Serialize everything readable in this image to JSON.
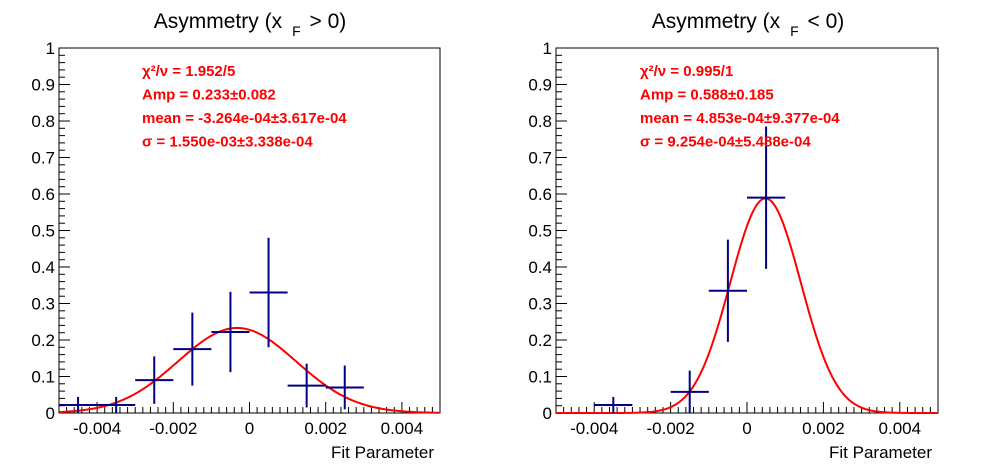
{
  "chart_data": [
    {
      "type": "scatter",
      "title_main": "Asymmetry (x",
      "title_sub": "F",
      "title_rest": " > 0)",
      "xlabel": "Fit Parameter",
      "ylabel": "",
      "xlim": [
        -0.005,
        0.005
      ],
      "ylim": [
        0,
        1
      ],
      "xticks": [
        -0.004,
        -0.002,
        0,
        0.002,
        0.004
      ],
      "xtick_labels": [
        "-0.004",
        "-0.002",
        "0",
        "0.002",
        "0.004"
      ],
      "yticks": [
        0,
        0.1,
        0.2,
        0.3,
        0.4,
        0.5,
        0.6,
        0.7,
        0.8,
        0.9,
        1
      ],
      "ytick_labels": [
        "0",
        "0.1",
        "0.2",
        "0.3",
        "0.4",
        "0.5",
        "0.6",
        "0.7",
        "0.8",
        "0.9",
        "1"
      ],
      "points": [
        {
          "x": -0.0045,
          "xerr": 0.0005,
          "y": 0.022,
          "yerr": 0.022
        },
        {
          "x": -0.0035,
          "xerr": 0.0005,
          "y": 0.022,
          "yerr": 0.022
        },
        {
          "x": -0.0025,
          "xerr": 0.0005,
          "y": 0.09,
          "yerr": 0.065
        },
        {
          "x": -0.0015,
          "xerr": 0.0005,
          "y": 0.175,
          "yerr": 0.1
        },
        {
          "x": -0.0005,
          "xerr": 0.0005,
          "y": 0.222,
          "yerr": 0.11
        },
        {
          "x": 0.0005,
          "xerr": 0.0005,
          "y": 0.33,
          "yerr": 0.15
        },
        {
          "x": 0.0015,
          "xerr": 0.0005,
          "y": 0.075,
          "yerr": 0.06
        },
        {
          "x": 0.0025,
          "xerr": 0.0005,
          "y": 0.07,
          "yerr": 0.06
        }
      ],
      "fit": {
        "amp": 0.233,
        "mean": -0.0003264,
        "sigma": 0.00155
      },
      "stats": [
        "χ²/ν = 1.952/5",
        "Amp = 0.233±0.082",
        "mean = -3.264e-04±3.617e-04",
        "σ = 1.550e-03±3.338e-04"
      ],
      "colors": {
        "points": "#000080",
        "fit": "#ff0000",
        "stats": "#ff0000"
      }
    },
    {
      "type": "scatter",
      "title_main": "Asymmetry (x",
      "title_sub": "F",
      "title_rest": " < 0)",
      "xlabel": "Fit Parameter",
      "ylabel": "",
      "xlim": [
        -0.005,
        0.005
      ],
      "ylim": [
        0,
        1
      ],
      "xticks": [
        -0.004,
        -0.002,
        0,
        0.002,
        0.004
      ],
      "xtick_labels": [
        "-0.004",
        "-0.002",
        "0",
        "0.002",
        "0.004"
      ],
      "yticks": [
        0,
        0.1,
        0.2,
        0.3,
        0.4,
        0.5,
        0.6,
        0.7,
        0.8,
        0.9,
        1
      ],
      "ytick_labels": [
        "0",
        "0.1",
        "0.2",
        "0.3",
        "0.4",
        "0.5",
        "0.6",
        "0.7",
        "0.8",
        "0.9",
        "1"
      ],
      "points": [
        {
          "x": -0.0035,
          "xerr": 0.0005,
          "y": 0.022,
          "yerr": 0.022
        },
        {
          "x": -0.0015,
          "xerr": 0.0005,
          "y": 0.058,
          "yerr": 0.058
        },
        {
          "x": -0.0005,
          "xerr": 0.0005,
          "y": 0.335,
          "yerr": 0.14
        },
        {
          "x": 0.0005,
          "xerr": 0.0005,
          "y": 0.59,
          "yerr": 0.195
        }
      ],
      "fit": {
        "amp": 0.588,
        "mean": 0.0004853,
        "sigma": 0.0009254
      },
      "stats": [
        "χ²/ν = 0.995/1",
        "Amp = 0.588±0.185",
        "mean = 4.853e-04±9.377e-04",
        "σ = 9.254e-04±5.488e-04"
      ],
      "colors": {
        "points": "#000080",
        "fit": "#ff0000",
        "stats": "#ff0000"
      }
    }
  ]
}
